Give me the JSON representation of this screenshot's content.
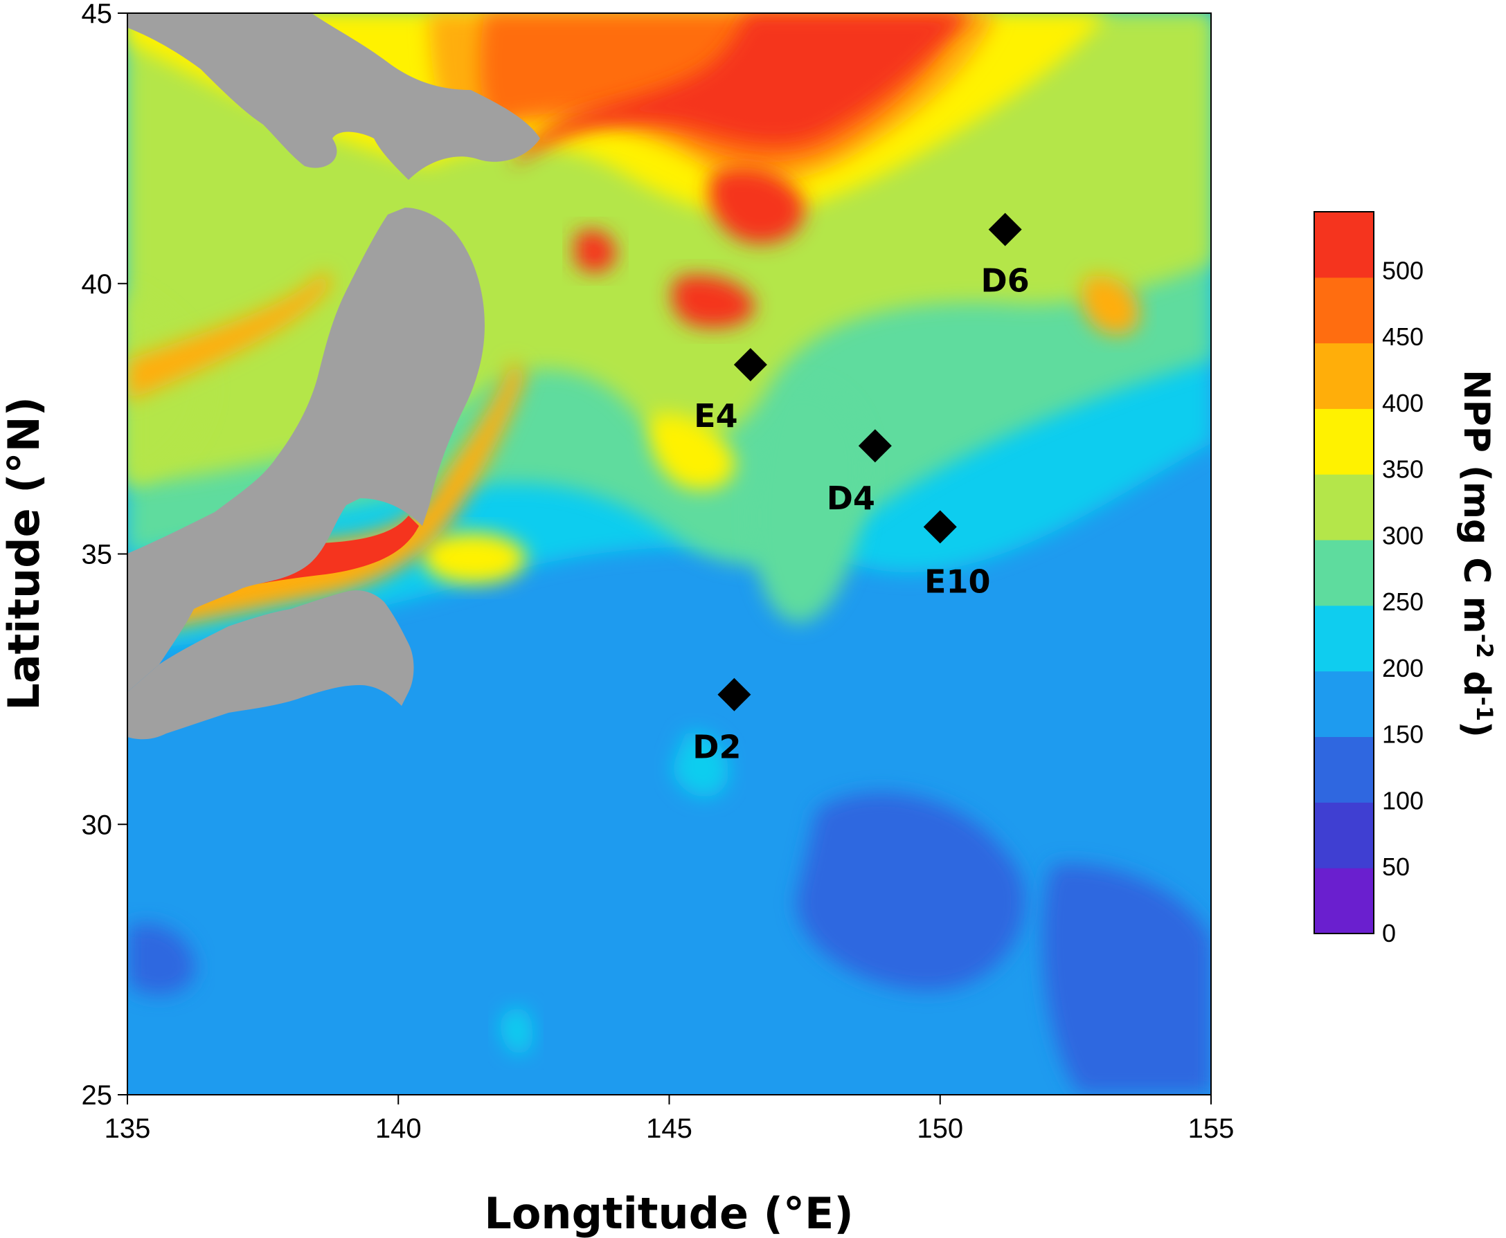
{
  "chart_data": {
    "type": "heatmap",
    "xlabel": "Longtitude (°E)",
    "ylabel": "Latitude (°N)",
    "xlim": [
      135,
      155
    ],
    "ylim": [
      25,
      45
    ],
    "xticks": [
      "135",
      "140",
      "145",
      "150",
      "155"
    ],
    "yticks": [
      "25",
      "30",
      "35",
      "40",
      "45"
    ],
    "colorbar": {
      "title": "NPP (mg C m",
      "title_sup1": "-2",
      "title_mid": " d",
      "title_sup2": "-1",
      "title_end": ")",
      "labels": [
        "0",
        "50",
        "100",
        "150",
        "200",
        "250",
        "300",
        "350",
        "400",
        "450",
        "500"
      ],
      "colors": [
        "#6a1fcf",
        "#3f3fd2",
        "#2f67e0",
        "#1e9bef",
        "#0fcdef",
        "#5edc9e",
        "#b4e64a",
        "#fff200",
        "#ffae0a",
        "#ff6d10",
        "#f5341e"
      ],
      "land_color": "#a0a0a0"
    },
    "stations": [
      {
        "name": "D6",
        "lon": 151.2,
        "lat": 41.0
      },
      {
        "name": "E4",
        "lon": 146.5,
        "lat": 38.5
      },
      {
        "name": "D4",
        "lon": 148.8,
        "lat": 37.0
      },
      {
        "name": "E10",
        "lon": 150.0,
        "lat": 35.5
      },
      {
        "name": "D2",
        "lon": 146.2,
        "lat": 32.4
      }
    ]
  }
}
